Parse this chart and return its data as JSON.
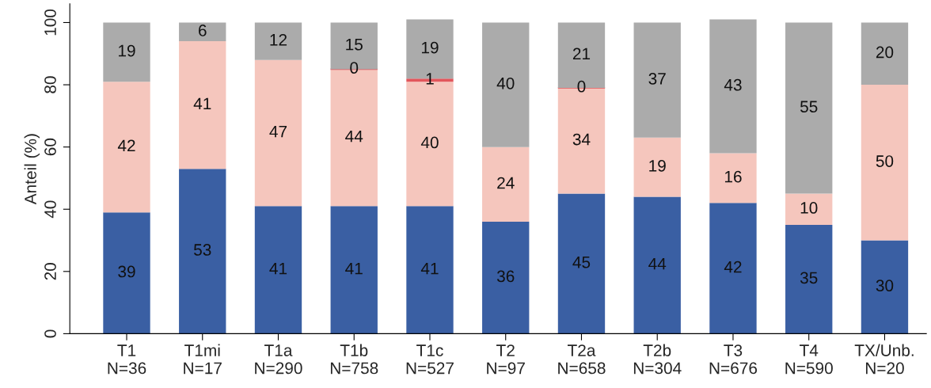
{
  "chart_data": {
    "type": "bar",
    "stacked": true,
    "ylabel": "Anteil (%)",
    "categories": [
      "T1\nN=36",
      "T1mi\nN=17",
      "T1a\nN=290",
      "T1b\nN=758",
      "T1c\nN=527",
      "T2\nN=97",
      "T2a\nN=658",
      "T2b\nN=304",
      "T3\nN=676",
      "T4\nN=590",
      "TX/Unb.\nN=20"
    ],
    "series": [
      {
        "color": "#3a5fa3",
        "values": [
          39,
          53,
          41,
          41,
          41,
          36,
          45,
          44,
          42,
          35,
          30
        ],
        "value_labels": [
          "39",
          "53",
          "41",
          "41",
          "41",
          "36",
          "45",
          "44",
          "42",
          "35",
          "30"
        ]
      },
      {
        "color": "#f5c6bd",
        "values": [
          42,
          41,
          47,
          44,
          40,
          24,
          34,
          19,
          16,
          10,
          50
        ],
        "value_labels": [
          "42",
          "41",
          "47",
          "44",
          "40",
          "24",
          "34",
          "19",
          "16",
          "10",
          "50"
        ]
      },
      {
        "color": "#e2565c",
        "values": [
          null,
          null,
          null,
          0,
          1,
          null,
          0,
          null,
          null,
          null,
          null
        ],
        "value_labels": [
          null,
          null,
          null,
          "0",
          "1",
          null,
          "0",
          null,
          null,
          null,
          null
        ]
      },
      {
        "color": "#ababab",
        "values": [
          19,
          6,
          12,
          15,
          19,
          40,
          21,
          37,
          43,
          55,
          20
        ],
        "value_labels": [
          "19",
          "6",
          "12",
          "15",
          "19",
          "40",
          "21",
          "37",
          "43",
          "55",
          "20"
        ]
      }
    ],
    "ylim": [
      0,
      106
    ],
    "yticks": [
      0,
      20,
      40,
      60,
      80,
      100
    ],
    "grid": false,
    "legend": false
  }
}
